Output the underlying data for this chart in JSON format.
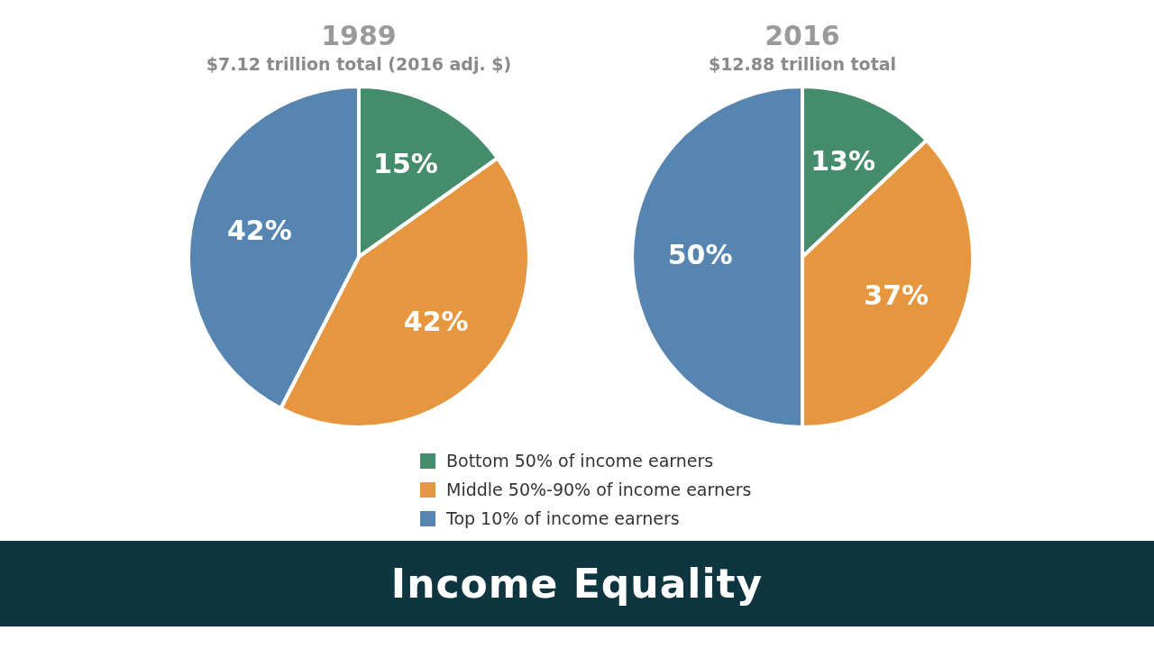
{
  "chart_data": [
    {
      "type": "pie",
      "title": "1989",
      "subtitle": "$7.12 trillion total (2016 adj. $)",
      "categories": [
        "Bottom 50% of income earners",
        "Middle 50%-90% of income earners",
        "Top 10% of income earners"
      ],
      "values": [
        15,
        42,
        42
      ],
      "value_labels": [
        "15%",
        "42%",
        "42%"
      ],
      "colors": [
        "#448c6c",
        "#e6963f",
        "#5585b0"
      ],
      "legend": "bottom"
    },
    {
      "type": "pie",
      "title": "2016",
      "subtitle": "$12.88 trillion total",
      "categories": [
        null,
        null,
        null
      ],
      "values": [
        13,
        37,
        50
      ],
      "value_labels": [
        "13%",
        "37%",
        "50%"
      ],
      "colors": [
        "#448c6c",
        "#e6963f",
        "#5585b0"
      ]
    },
    {
      "type": "other",
      "title": "Income Equality"
    }
  ]
}
